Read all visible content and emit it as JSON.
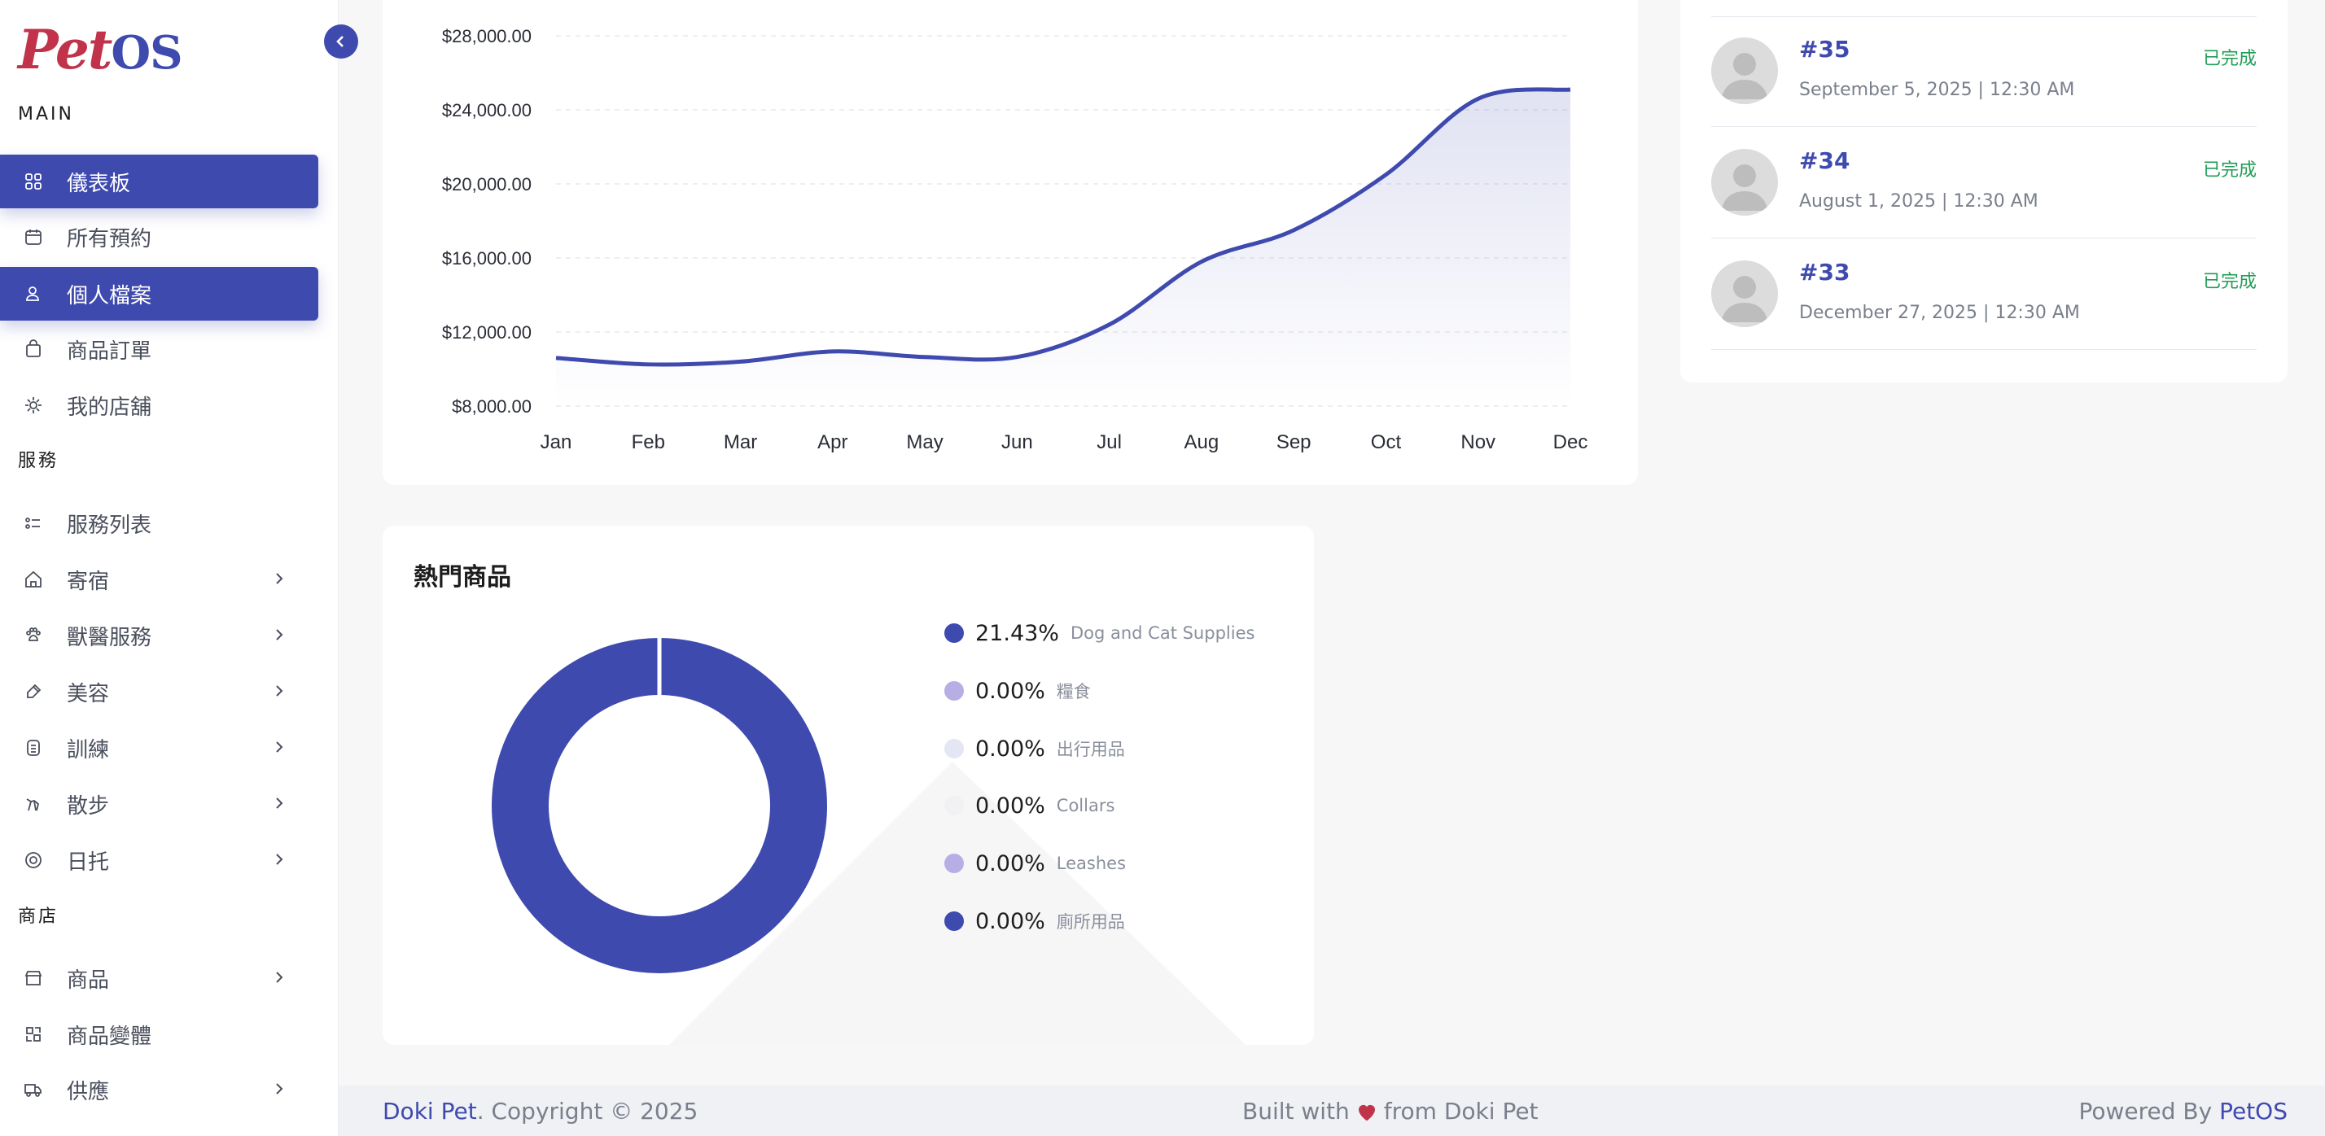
{
  "app": {
    "logo_part1": "Pet",
    "logo_part2": "OS"
  },
  "sidebar": {
    "main_label": "MAIN",
    "items_main": [
      {
        "label": "儀表板",
        "icon": "grid-icon",
        "active": true
      },
      {
        "label": "所有預約",
        "icon": "calendar-icon",
        "active": false
      },
      {
        "label": "個人檔案",
        "icon": "user-icon",
        "active": true
      },
      {
        "label": "商品訂單",
        "icon": "bag-icon",
        "active": false
      },
      {
        "label": "我的店舖",
        "icon": "store-icon",
        "active": false
      }
    ],
    "service_label": "服務",
    "items_service": [
      {
        "label": "服務列表",
        "icon": "list-icon"
      },
      {
        "label": "寄宿",
        "icon": "house-icon"
      },
      {
        "label": "獸醫服務",
        "icon": "paw-icon"
      },
      {
        "label": "美容",
        "icon": "brush-icon"
      },
      {
        "label": "訓練",
        "icon": "badge-icon"
      },
      {
        "label": "散步",
        "icon": "walk-icon"
      },
      {
        "label": "日托",
        "icon": "daycare-icon"
      }
    ],
    "shop_label": "商店",
    "items_shop": [
      {
        "label": "商品",
        "icon": "shop-icon"
      },
      {
        "label": "商品變體",
        "icon": "variant-icon"
      },
      {
        "label": "供應",
        "icon": "truck-icon"
      }
    ]
  },
  "chart_data": {
    "type": "area",
    "categories": [
      "Jan",
      "Feb",
      "Mar",
      "Apr",
      "May",
      "Jun",
      "Jul",
      "Aug",
      "Sep",
      "Oct",
      "Nov",
      "Dec"
    ],
    "series": [
      {
        "values": [
          10600,
          10250,
          10400,
          10950,
          10650,
          10650,
          12400,
          15800,
          17500,
          20500,
          24600,
          25100
        ]
      }
    ],
    "yticks": [
      "$8,000.00",
      "$12,000.00",
      "$16,000.00",
      "$20,000.00",
      "$24,000.00",
      "$28,000.00"
    ],
    "ylim": [
      8000,
      28000
    ],
    "grid": true,
    "color": "#3f4aaf"
  },
  "recent_orders": [
    {
      "id": "#35",
      "date": "September 5, 2025 | 12:30 AM",
      "status": "已完成"
    },
    {
      "id": "#34",
      "date": "August 1, 2025 | 12:30 AM",
      "status": "已完成"
    },
    {
      "id": "#33",
      "date": "December 27, 2025 | 12:30 AM",
      "status": "已完成"
    }
  ],
  "popular_products": {
    "title": "熱門商品",
    "items": [
      {
        "pct": "21.43%",
        "label": "Dog and Cat Supplies",
        "color": "#3f4aaf",
        "value": 21.43
      },
      {
        "pct": "0.00%",
        "label": "糧食",
        "color": "#b8aee6",
        "value": 0
      },
      {
        "pct": "0.00%",
        "label": "出行用品",
        "color": "#e4e6f4",
        "value": 0
      },
      {
        "pct": "0.00%",
        "label": "Collars",
        "color": "#f1f1f3",
        "value": 0
      },
      {
        "pct": "0.00%",
        "label": "Leashes",
        "color": "#b8aee6",
        "value": 0
      },
      {
        "pct": "0.00%",
        "label": "廁所用品",
        "color": "#3f4aaf",
        "value": 0
      }
    ]
  },
  "footer": {
    "brand": "Doki Pet",
    "copyright": ". Copyright © 2025",
    "built_pre": "Built with",
    "built_post": "from Doki Pet",
    "powered_pre": "Powered By",
    "powered_brand": "PetOS"
  }
}
